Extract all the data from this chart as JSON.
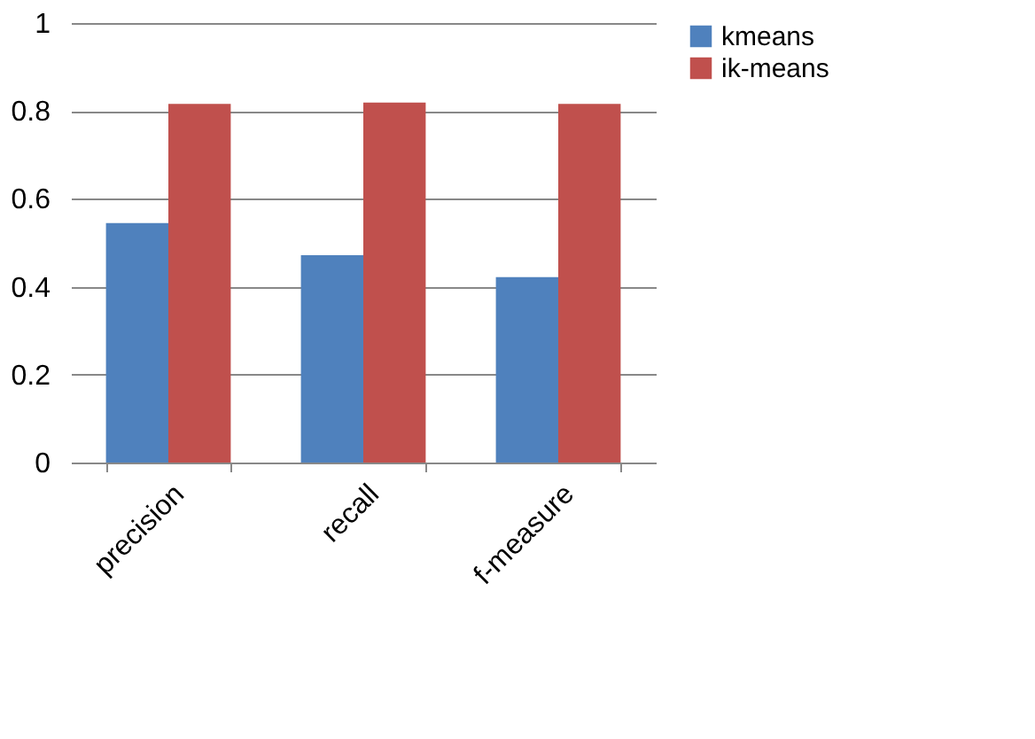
{
  "chart_data": {
    "type": "bar",
    "categories": [
      "precision",
      "recall",
      "f-measure"
    ],
    "series": [
      {
        "name": "kmeans",
        "color": "#4f81bd",
        "values": [
          0.545,
          0.472,
          0.422
        ]
      },
      {
        "name": "ik-means",
        "color": "#c0504d",
        "values": [
          0.816,
          0.819,
          0.816
        ]
      }
    ],
    "ylim": [
      0,
      1
    ],
    "yticks": [
      0,
      0.2,
      0.4,
      0.6,
      0.8,
      1
    ],
    "grid": "y",
    "legend": "right"
  }
}
